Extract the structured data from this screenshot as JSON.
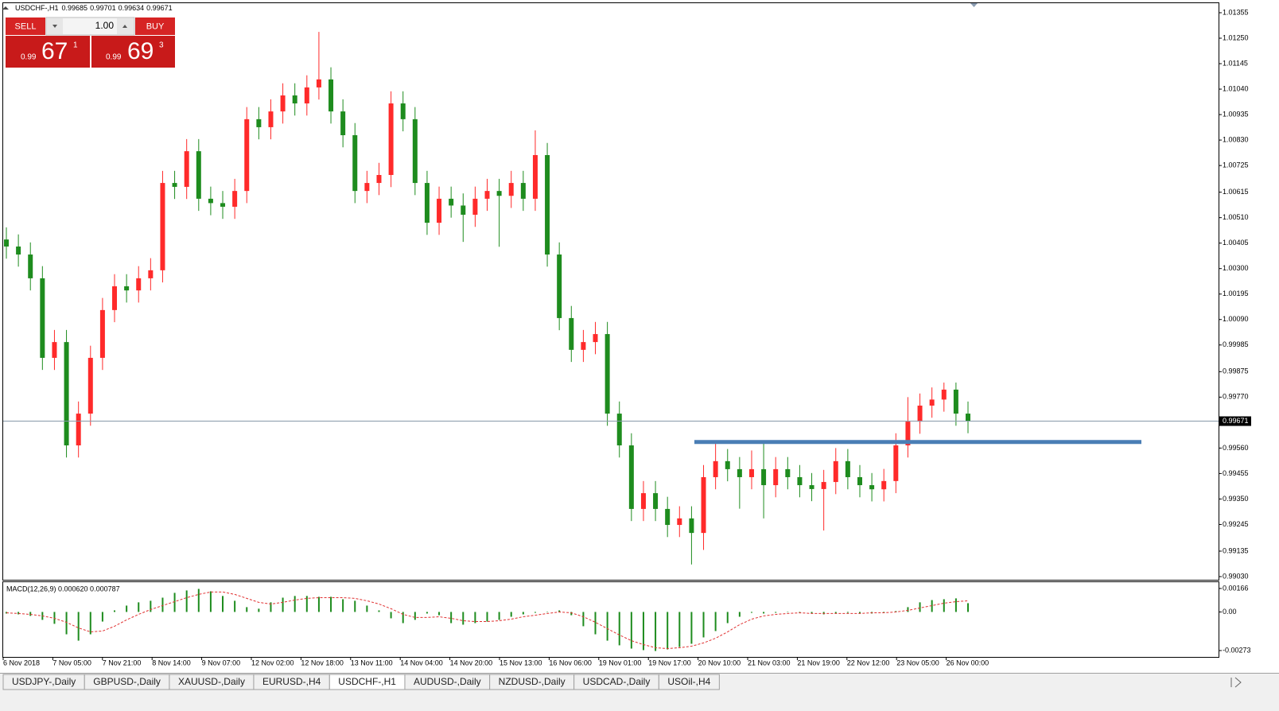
{
  "symbol_line": {
    "symbol": "USDCHF-,H1",
    "values": [
      0.99685,
      0.99701,
      0.99634,
      0.99671
    ]
  },
  "trade_panel": {
    "sell": "SELL",
    "lot": "1.00",
    "buy": "BUY",
    "bid": {
      "prefix": "0.99",
      "big": "67",
      "small": "1"
    },
    "ask": {
      "prefix": "0.99",
      "big": "69",
      "small": "3"
    }
  },
  "chart_data": [
    {
      "type": "candlestick",
      "up_color": "#ff2a2a",
      "down_color": "#1e8c1e",
      "open": [
        1.0042,
        1.00391,
        1.00358,
        1.0026,
        0.99932,
        0.99997,
        0.99571,
        0.99702,
        0.99932,
        1.00129,
        1.00227,
        1.0021,
        1.0026,
        1.00293,
        1.00653,
        1.00637,
        1.00784,
        1.00588,
        1.0057,
        1.00555,
        1.0062,
        1.00916,
        1.00883,
        1.00948,
        1.01014,
        1.00981,
        1.01047,
        1.0108,
        1.00948,
        1.0085,
        1.0062,
        1.00653,
        1.00686,
        1.00981,
        1.00916,
        1.00653,
        1.00489,
        1.00588,
        1.0056,
        1.00522,
        1.00588,
        1.0062,
        1.006,
        1.00653,
        1.00588,
        1.00768,
        1.00358,
        1.00096,
        0.99965,
        0.99997,
        1.0003,
        0.99702,
        0.99571,
        0.99309,
        0.99374,
        0.99309,
        0.99243,
        0.9927,
        0.9921,
        0.9944,
        0.99506,
        0.99473,
        0.9944,
        0.99473,
        0.99407,
        0.99473,
        0.9944,
        0.99407,
        0.99391,
        0.9942,
        0.99506,
        0.9944,
        0.99407,
        0.9939,
        0.99424,
        0.99571,
        0.99669,
        0.99735,
        0.9976,
        0.99801,
        0.99702
      ],
      "high": [
        1.0047,
        1.00441,
        1.00408,
        1.0031,
        1.00047,
        1.00047,
        0.99752,
        0.99982,
        1.00179,
        1.00277,
        1.00277,
        1.0031,
        1.00343,
        1.00703,
        1.00703,
        1.00834,
        1.00834,
        1.00638,
        1.0062,
        1.0067,
        1.00966,
        1.00966,
        1.00998,
        1.01064,
        1.01064,
        1.01097,
        1.01276,
        1.0113,
        1.00998,
        1.009,
        1.00703,
        1.00736,
        1.01031,
        1.01031,
        1.00966,
        1.00703,
        1.00638,
        1.00638,
        1.0061,
        1.00638,
        1.0067,
        1.0067,
        1.00703,
        1.00703,
        1.0087,
        1.00818,
        1.00408,
        1.00146,
        1.00047,
        1.0008,
        1.0008,
        0.99752,
        0.99621,
        0.99424,
        0.99424,
        0.99359,
        0.9932,
        0.9932,
        0.9949,
        0.9958,
        0.99556,
        0.99523,
        0.9955,
        0.9958,
        0.99523,
        0.99523,
        0.9949,
        0.99457,
        0.9947,
        0.9956,
        0.99556,
        0.9949,
        0.99457,
        0.99474,
        0.99621,
        0.9977,
        0.99785,
        0.9981,
        0.9983,
        0.9983,
        0.99752
      ],
      "low": [
        1.00341,
        1.00308,
        1.0021,
        0.99882,
        0.99882,
        0.99521,
        0.99521,
        0.99652,
        0.99882,
        1.00079,
        1.0016,
        1.0016,
        1.0021,
        1.00243,
        1.00587,
        1.00587,
        1.00538,
        1.0052,
        1.00505,
        1.00505,
        1.0057,
        1.00833,
        1.00833,
        1.00898,
        1.00931,
        1.00931,
        1.00997,
        1.00898,
        1.008,
        1.0057,
        1.0057,
        1.00603,
        1.00636,
        1.00866,
        1.00603,
        1.00439,
        1.00439,
        1.0051,
        1.0041,
        1.00472,
        1.00538,
        1.0039,
        1.0055,
        1.00538,
        1.00538,
        1.00308,
        1.00046,
        0.99915,
        0.99915,
        0.99947,
        0.99652,
        0.99521,
        0.99259,
        0.99259,
        0.99259,
        0.99193,
        0.99193,
        0.9908,
        0.9914,
        0.9939,
        0.99423,
        0.9931,
        0.9939,
        0.9927,
        0.99357,
        0.9939,
        0.99357,
        0.99341,
        0.9922,
        0.9937,
        0.9939,
        0.99357,
        0.9934,
        0.9934,
        0.99374,
        0.99521,
        0.99619,
        0.99685,
        0.9971,
        0.99652,
        0.99621
      ],
      "close": [
        1.00391,
        1.00358,
        1.0026,
        0.99932,
        0.99997,
        0.99571,
        0.99702,
        0.99932,
        1.00129,
        1.00227,
        1.0021,
        1.0026,
        1.00293,
        1.00653,
        1.00637,
        1.00784,
        1.00588,
        1.0057,
        1.00555,
        1.0062,
        1.00916,
        1.00883,
        1.00948,
        1.01014,
        1.00981,
        1.01047,
        1.0108,
        1.00948,
        1.0085,
        1.0062,
        1.00653,
        1.00686,
        1.00981,
        1.00916,
        1.00653,
        1.00489,
        1.00588,
        1.0056,
        1.00522,
        1.00588,
        1.0062,
        1.006,
        1.00653,
        1.00588,
        1.00768,
        1.00358,
        1.00096,
        0.99965,
        0.99997,
        1.0003,
        0.99702,
        0.99571,
        0.99309,
        0.99374,
        0.99309,
        0.99243,
        0.9927,
        0.9921,
        0.9944,
        0.99506,
        0.99473,
        0.9944,
        0.99473,
        0.99407,
        0.99473,
        0.9944,
        0.99407,
        0.99391,
        0.9942,
        0.99506,
        0.9944,
        0.99407,
        0.9939,
        0.99424,
        0.99571,
        0.99669,
        0.99735,
        0.9976,
        0.99801,
        0.99702,
        0.99671
      ],
      "ylim": [
        0.9903,
        1.01355
      ],
      "yticks": [
        1.01355,
        {
          "value": 1.0125,
          "label": "1.01250"
        },
        1.01145,
        {
          "value": 1.0104,
          "label": "1.01040"
        },
        1.00935,
        {
          "value": 1.0083,
          "label": "1.00830"
        },
        1.00725,
        1.00615,
        {
          "value": 1.0051,
          "label": "1.00510"
        },
        1.00405,
        {
          "value": 1.003,
          "label": "1.00300"
        },
        1.00195,
        {
          "value": 1.0009,
          "label": "1.00090"
        },
        0.99985,
        0.99875,
        {
          "value": 0.9977,
          "label": "0.99770"
        },
        {
          "value": 0.9956,
          "label": "0.99560"
        },
        0.99455,
        {
          "value": 0.9935,
          "label": "0.99350"
        },
        0.99245,
        0.99135,
        {
          "value": 0.9903,
          "label": "0.99030"
        }
      ],
      "current_price": 0.99671,
      "level": {
        "value": 0.99585,
        "color": "#4a7eb5"
      },
      "x_labels": [
        "6 Nov 2018",
        "7 Nov 05:00",
        "7 Nov 21:00",
        "8 Nov 14:00",
        "9 Nov 07:00",
        "12 Nov 02:00",
        "12 Nov 18:00",
        "13 Nov 11:00",
        "14 Nov 04:00",
        "14 Nov 20:00",
        "15 Nov 13:00",
        "16 Nov 06:00",
        "19 Nov 01:00",
        "19 Nov 17:00",
        "20 Nov 10:00",
        "21 Nov 03:00",
        "21 Nov 19:00",
        "22 Nov 12:00",
        "23 Nov 05:00",
        "26 Nov 00:00"
      ]
    },
    {
      "type": "macd",
      "label": "MACD(12,26,9) 0.000620 0.000787",
      "color": "#1e8c1e",
      "signal_color": "#e03030",
      "values": [
        -0.00011,
        -0.00017,
        -0.00028,
        -0.00056,
        -0.00084,
        -0.00158,
        -0.00203,
        -0.00158,
        -0.00068,
        0.00011,
        0.00045,
        0.00068,
        0.00079,
        0.00101,
        0.00135,
        0.00152,
        0.00163,
        0.00146,
        0.00113,
        0.00079,
        0.00034,
        0.00023,
        0.00068,
        0.00101,
        0.00113,
        0.00113,
        0.00107,
        0.00107,
        0.0009,
        0.00079,
        0.00045,
        0.00011,
        -0.00045,
        -0.00079,
        -0.00056,
        -0.00011,
        -0.00023,
        -0.00079,
        -0.0009,
        -0.00079,
        -0.00068,
        -0.00056,
        -0.00034,
        -0.00017,
        -6e-05,
        0,
        0.00011,
        -0.00023,
        -0.00101,
        -0.00158,
        -0.00203,
        -0.00236,
        -0.00259,
        -0.0027,
        -0.00276,
        -0.00265,
        -0.00248,
        -0.00225,
        -0.0018,
        -0.00135,
        -0.00079,
        -0.00034,
        -6e-05,
        -0.00011,
        -6e-05,
        0,
        -6e-05,
        -0.00011,
        -0.00017,
        -0.00011,
        -6e-05,
        -0.00011,
        -0.00011,
        -6e-05,
        6e-05,
        0.00034,
        0.00068,
        0.00084,
        0.0009,
        0.00096,
        0.00062
      ],
      "signal": [
        -6e-05,
        -0.00011,
        -0.00017,
        -0.00028,
        -0.00045,
        -0.00073,
        -0.00113,
        -0.00141,
        -0.00135,
        -0.00101,
        -0.00056,
        -0.00017,
        0.00017,
        0.00045,
        0.00073,
        0.00101,
        0.00124,
        0.00141,
        0.00141,
        0.00124,
        0.00096,
        0.00068,
        0.00056,
        0.00068,
        0.00084,
        0.00096,
        0.00101,
        0.00101,
        0.00101,
        0.00096,
        0.00079,
        0.00056,
        0.00023,
        -0.00017,
        -0.00039,
        -0.00039,
        -0.00034,
        -0.00045,
        -0.00062,
        -0.00068,
        -0.00068,
        -0.00062,
        -0.00051,
        -0.00034,
        -0.00023,
        -0.00011,
        0,
        -6e-05,
        -0.00034,
        -0.00073,
        -0.00118,
        -0.00163,
        -0.00203,
        -0.00231,
        -0.00253,
        -0.00259,
        -0.00253,
        -0.00242,
        -0.00219,
        -0.00186,
        -0.00141,
        -0.0009,
        -0.00051,
        -0.00028,
        -0.00017,
        -0.00011,
        -6e-05,
        -0.00011,
        -0.00011,
        -0.00011,
        -0.00011,
        -0.00011,
        -6e-05,
        -6e-05,
        0,
        0.00011,
        0.00028,
        0.00045,
        0.00062,
        0.00073,
        0.000787
      ],
      "ylim": [
        -0.00318,
        0.00205
      ],
      "yticks": [
        0.00166,
        {
          "value": 0,
          "label": "0.00"
        },
        -0.00273
      ]
    }
  ],
  "tabs": [
    "USDJPY-,Daily",
    "GBPUSD-,Daily",
    "XAUUSD-,Daily",
    "EURUSD-,H4",
    "USDCHF-,H1",
    "AUDUSD-,Daily",
    "NZDUSD-,Daily",
    "USDCAD-,Daily",
    "USOil-,H4"
  ],
  "active_tab": 4
}
